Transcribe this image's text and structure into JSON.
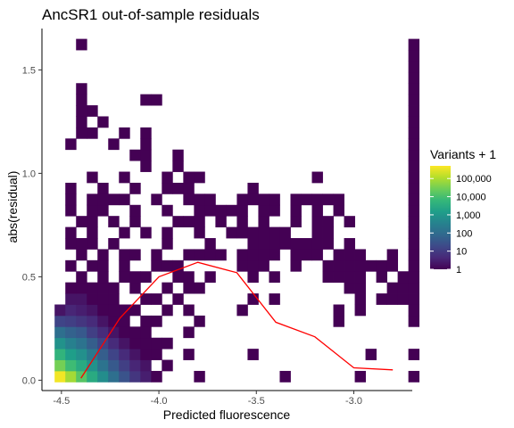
{
  "chart_data": {
    "type": "heatmap",
    "title": "AncSR1 out-of-sample residuals",
    "xlabel": "Predicted fluorescence",
    "ylabel": "abs(residual)",
    "xlim": [
      -4.6,
      -2.7
    ],
    "ylim": [
      -0.05,
      1.7
    ],
    "x_ticks": [
      {
        "value": -4.5,
        "label": "-4.5"
      },
      {
        "value": -4.0,
        "label": "-4.0"
      },
      {
        "value": -3.5,
        "label": "-3.5"
      },
      {
        "value": -3.0,
        "label": "-3.0"
      }
    ],
    "y_ticks": [
      {
        "value": 0.0,
        "label": "0.0"
      },
      {
        "value": 0.5,
        "label": "0.5"
      },
      {
        "value": 1.0,
        "label": "1.0"
      },
      {
        "value": 1.5,
        "label": "1.5"
      }
    ],
    "grid": false,
    "bin_width": {
      "x": 0.055,
      "y": 0.0535
    },
    "x_bin_start": -4.535,
    "y_bin_start": -0.0085,
    "cells": [
      [
        0,
        0,
        400000
      ],
      [
        0,
        1,
        30000
      ],
      [
        0,
        2,
        5000
      ],
      [
        0,
        3,
        800
      ],
      [
        0,
        4,
        120
      ],
      [
        0,
        5,
        15
      ],
      [
        0,
        6,
        2
      ],
      [
        1,
        0,
        80000
      ],
      [
        1,
        1,
        8000
      ],
      [
        1,
        2,
        1500
      ],
      [
        1,
        3,
        300
      ],
      [
        1,
        4,
        60
      ],
      [
        1,
        5,
        12
      ],
      [
        1,
        6,
        4
      ],
      [
        1,
        7,
        2
      ],
      [
        1,
        8,
        1
      ],
      [
        1,
        10,
        1
      ],
      [
        1,
        12,
        1
      ],
      [
        1,
        13,
        1
      ],
      [
        1,
        15,
        1
      ],
      [
        1,
        16,
        1
      ],
      [
        1,
        17,
        1
      ],
      [
        1,
        21,
        1
      ],
      [
        2,
        0,
        15000
      ],
      [
        2,
        1,
        3000
      ],
      [
        2,
        2,
        700
      ],
      [
        2,
        3,
        150
      ],
      [
        2,
        4,
        40
      ],
      [
        2,
        5,
        8
      ],
      [
        2,
        6,
        3
      ],
      [
        2,
        7,
        2
      ],
      [
        2,
        8,
        1
      ],
      [
        2,
        9,
        1
      ],
      [
        2,
        11,
        1
      ],
      [
        2,
        12,
        1
      ],
      [
        2,
        14,
        1
      ],
      [
        2,
        22,
        1
      ],
      [
        2,
        23,
        1
      ],
      [
        2,
        24,
        1
      ],
      [
        2,
        25,
        1
      ],
      [
        2,
        26,
        1
      ],
      [
        2,
        30,
        1
      ],
      [
        3,
        0,
        3000
      ],
      [
        3,
        1,
        800
      ],
      [
        3,
        2,
        200
      ],
      [
        3,
        3,
        50
      ],
      [
        3,
        4,
        12
      ],
      [
        3,
        5,
        5
      ],
      [
        3,
        6,
        2
      ],
      [
        3,
        7,
        1
      ],
      [
        3,
        8,
        1
      ],
      [
        3,
        10,
        1
      ],
      [
        3,
        12,
        1
      ],
      [
        3,
        13,
        1
      ],
      [
        3,
        14,
        1
      ],
      [
        3,
        15,
        1
      ],
      [
        3,
        16,
        1
      ],
      [
        3,
        18,
        1
      ],
      [
        3,
        22,
        1
      ],
      [
        3,
        24,
        1
      ],
      [
        4,
        0,
        600
      ],
      [
        4,
        1,
        150
      ],
      [
        4,
        2,
        50
      ],
      [
        4,
        3,
        15
      ],
      [
        4,
        4,
        5
      ],
      [
        4,
        5,
        2
      ],
      [
        4,
        6,
        1
      ],
      [
        4,
        7,
        1
      ],
      [
        4,
        8,
        1
      ],
      [
        4,
        9,
        1
      ],
      [
        4,
        10,
        1
      ],
      [
        4,
        11,
        1
      ],
      [
        4,
        15,
        1
      ],
      [
        4,
        16,
        1
      ],
      [
        4,
        17,
        1
      ],
      [
        4,
        23,
        1
      ],
      [
        5,
        0,
        120
      ],
      [
        5,
        1,
        40
      ],
      [
        5,
        2,
        15
      ],
      [
        5,
        3,
        5
      ],
      [
        5,
        4,
        2
      ],
      [
        5,
        5,
        1
      ],
      [
        5,
        6,
        1
      ],
      [
        5,
        7,
        1
      ],
      [
        5,
        8,
        1
      ],
      [
        5,
        12,
        1
      ],
      [
        5,
        14,
        1
      ],
      [
        5,
        16,
        1
      ],
      [
        5,
        21,
        1
      ],
      [
        6,
        0,
        30
      ],
      [
        6,
        1,
        12
      ],
      [
        6,
        2,
        5
      ],
      [
        6,
        3,
        2
      ],
      [
        6,
        4,
        1
      ],
      [
        6,
        5,
        1
      ],
      [
        6,
        6,
        1
      ],
      [
        6,
        9,
        1
      ],
      [
        6,
        10,
        1
      ],
      [
        6,
        11,
        1
      ],
      [
        6,
        13,
        1
      ],
      [
        6,
        16,
        1
      ],
      [
        6,
        18,
        1
      ],
      [
        6,
        22,
        1
      ],
      [
        7,
        0,
        8
      ],
      [
        7,
        1,
        4
      ],
      [
        7,
        2,
        2
      ],
      [
        7,
        3,
        1
      ],
      [
        7,
        4,
        1
      ],
      [
        7,
        6,
        1
      ],
      [
        7,
        8,
        1
      ],
      [
        7,
        9,
        1
      ],
      [
        7,
        11,
        1
      ],
      [
        7,
        14,
        1
      ],
      [
        7,
        15,
        1
      ],
      [
        7,
        17,
        1
      ],
      [
        7,
        20,
        1
      ],
      [
        8,
        0,
        3
      ],
      [
        8,
        1,
        2
      ],
      [
        8,
        2,
        1
      ],
      [
        8,
        3,
        1
      ],
      [
        8,
        4,
        1
      ],
      [
        8,
        5,
        1
      ],
      [
        8,
        7,
        1
      ],
      [
        8,
        9,
        1
      ],
      [
        8,
        13,
        1
      ],
      [
        8,
        19,
        1
      ],
      [
        8,
        20,
        1
      ],
      [
        8,
        21,
        1
      ],
      [
        8,
        22,
        1
      ],
      [
        8,
        25,
        1
      ],
      [
        9,
        0,
        1
      ],
      [
        9,
        2,
        1
      ],
      [
        9,
        3,
        1
      ],
      [
        9,
        5,
        1
      ],
      [
        9,
        7,
        1
      ],
      [
        9,
        10,
        1
      ],
      [
        9,
        11,
        1
      ],
      [
        9,
        16,
        1
      ],
      [
        9,
        25,
        1
      ],
      [
        10,
        1,
        1
      ],
      [
        10,
        3,
        1
      ],
      [
        10,
        6,
        1
      ],
      [
        10,
        8,
        1
      ],
      [
        10,
        10,
        1
      ],
      [
        10,
        12,
        1
      ],
      [
        10,
        13,
        1
      ],
      [
        10,
        15,
        1
      ],
      [
        10,
        17,
        1
      ],
      [
        10,
        18,
        1
      ],
      [
        11,
        7,
        1
      ],
      [
        11,
        9,
        1
      ],
      [
        11,
        10,
        1
      ],
      [
        11,
        14,
        1
      ],
      [
        11,
        17,
        1
      ],
      [
        11,
        19,
        1
      ],
      [
        11,
        20,
        1
      ],
      [
        12,
        2,
        1
      ],
      [
        12,
        4,
        1
      ],
      [
        12,
        6,
        1
      ],
      [
        12,
        8,
        1
      ],
      [
        12,
        9,
        1
      ],
      [
        12,
        11,
        1
      ],
      [
        12,
        14,
        1
      ],
      [
        12,
        16,
        1
      ],
      [
        12,
        17,
        1
      ],
      [
        12,
        18,
        1
      ],
      [
        13,
        0,
        1
      ],
      [
        13,
        5,
        1
      ],
      [
        13,
        8,
        1
      ],
      [
        13,
        11,
        1
      ],
      [
        13,
        13,
        1
      ],
      [
        13,
        14,
        1
      ],
      [
        13,
        15,
        1
      ],
      [
        13,
        16,
        1
      ],
      [
        13,
        18,
        1
      ],
      [
        14,
        9,
        1
      ],
      [
        14,
        11,
        1
      ],
      [
        14,
        12,
        1
      ],
      [
        14,
        15,
        1
      ],
      [
        14,
        16,
        1
      ],
      [
        15,
        11,
        1
      ],
      [
        15,
        14,
        1
      ],
      [
        15,
        15,
        1
      ],
      [
        16,
        13,
        1
      ],
      [
        16,
        15,
        1
      ],
      [
        17,
        6,
        1
      ],
      [
        17,
        10,
        1
      ],
      [
        17,
        11,
        1
      ],
      [
        17,
        13,
        1
      ],
      [
        17,
        14,
        1
      ],
      [
        17,
        15,
        1
      ],
      [
        17,
        16,
        1
      ],
      [
        18,
        2,
        1
      ],
      [
        18,
        7,
        1
      ],
      [
        18,
        9,
        1
      ],
      [
        18,
        10,
        1
      ],
      [
        18,
        11,
        1
      ],
      [
        18,
        12,
        1
      ],
      [
        18,
        13,
        1
      ],
      [
        18,
        16,
        1
      ],
      [
        18,
        17,
        1
      ],
      [
        19,
        10,
        1
      ],
      [
        19,
        11,
        1
      ],
      [
        19,
        12,
        1
      ],
      [
        19,
        13,
        1
      ],
      [
        19,
        14,
        1
      ],
      [
        19,
        15,
        1
      ],
      [
        19,
        16,
        1
      ],
      [
        20,
        7,
        1
      ],
      [
        20,
        9,
        1
      ],
      [
        20,
        11,
        1
      ],
      [
        20,
        12,
        1
      ],
      [
        20,
        13,
        1
      ],
      [
        20,
        15,
        1
      ],
      [
        20,
        16,
        1
      ],
      [
        21,
        0,
        1
      ],
      [
        21,
        12,
        1
      ],
      [
        21,
        13,
        1
      ],
      [
        22,
        10,
        1
      ],
      [
        22,
        11,
        1
      ],
      [
        22,
        12,
        1
      ],
      [
        22,
        14,
        1
      ],
      [
        22,
        15,
        1
      ],
      [
        22,
        16,
        1
      ],
      [
        23,
        11,
        1
      ],
      [
        23,
        12,
        1
      ],
      [
        23,
        16,
        1
      ],
      [
        24,
        11,
        1
      ],
      [
        24,
        12,
        1
      ],
      [
        24,
        13,
        1
      ],
      [
        24,
        14,
        1
      ],
      [
        24,
        15,
        1
      ],
      [
        24,
        16,
        1
      ],
      [
        24,
        18,
        1
      ],
      [
        25,
        9,
        1
      ],
      [
        25,
        10,
        1
      ],
      [
        25,
        12,
        1
      ],
      [
        25,
        13,
        1
      ],
      [
        25,
        14,
        1
      ],
      [
        25,
        16,
        1
      ],
      [
        26,
        5,
        1
      ],
      [
        26,
        6,
        1
      ],
      [
        26,
        9,
        1
      ],
      [
        26,
        10,
        1
      ],
      [
        26,
        11,
        1
      ],
      [
        26,
        15,
        1
      ],
      [
        26,
        16,
        1
      ],
      [
        27,
        8,
        1
      ],
      [
        27,
        9,
        1
      ],
      [
        27,
        10,
        1
      ],
      [
        27,
        11,
        1
      ],
      [
        27,
        12,
        1
      ],
      [
        27,
        14,
        1
      ],
      [
        28,
        0,
        1
      ],
      [
        28,
        6,
        1
      ],
      [
        28,
        7,
        1
      ],
      [
        28,
        8,
        1
      ],
      [
        28,
        9,
        1
      ],
      [
        28,
        10,
        1
      ],
      [
        28,
        11,
        1
      ],
      [
        29,
        2,
        1
      ],
      [
        29,
        10,
        1
      ],
      [
        30,
        7,
        1
      ],
      [
        30,
        9,
        1
      ],
      [
        30,
        10,
        1
      ],
      [
        31,
        7,
        1
      ],
      [
        31,
        8,
        1
      ],
      [
        31,
        10,
        1
      ],
      [
        31,
        11,
        1
      ],
      [
        32,
        7,
        1
      ],
      [
        32,
        8,
        1
      ],
      [
        32,
        9,
        1
      ],
      [
        33,
        0,
        1
      ],
      [
        33,
        2,
        1
      ],
      [
        33,
        5,
        1
      ],
      [
        33,
        6,
        1
      ],
      [
        33,
        7,
        1
      ],
      [
        33,
        8,
        1
      ],
      [
        33,
        9,
        1
      ],
      [
        33,
        10,
        1
      ],
      [
        33,
        11,
        1
      ],
      [
        33,
        12,
        1
      ],
      [
        33,
        13,
        1
      ],
      [
        33,
        14,
        1
      ],
      [
        33,
        15,
        1
      ],
      [
        33,
        16,
        1
      ],
      [
        33,
        17,
        1
      ],
      [
        33,
        18,
        1
      ],
      [
        33,
        19,
        1
      ],
      [
        33,
        20,
        1
      ],
      [
        33,
        21,
        1
      ],
      [
        33,
        22,
        1
      ],
      [
        33,
        23,
        1
      ],
      [
        33,
        24,
        1
      ],
      [
        33,
        25,
        1
      ],
      [
        33,
        26,
        1
      ],
      [
        33,
        27,
        1
      ],
      [
        33,
        28,
        1
      ],
      [
        33,
        29,
        1
      ],
      [
        33,
        30,
        1
      ]
    ],
    "trend_line": {
      "color": "#ff0000",
      "points": [
        [
          -4.4,
          0.01
        ],
        [
          -4.2,
          0.3
        ],
        [
          -4.0,
          0.5
        ],
        [
          -3.8,
          0.57
        ],
        [
          -3.6,
          0.52
        ],
        [
          -3.4,
          0.28
        ],
        [
          -3.2,
          0.21
        ],
        [
          -3.0,
          0.06
        ],
        [
          -2.8,
          0.05
        ]
      ]
    },
    "legend": {
      "title": "Variants + 1",
      "placement": "right",
      "scale": "log10",
      "range": [
        1,
        500000
      ],
      "colormap": "viridis",
      "colors": [
        "#440154",
        "#482878",
        "#3e4989",
        "#31688e",
        "#26828e",
        "#1f9e89",
        "#35b779",
        "#6ece58",
        "#b5de2b",
        "#fde725"
      ],
      "breaks": [
        {
          "value": 1,
          "label": "1"
        },
        {
          "value": 10,
          "label": "10"
        },
        {
          "value": 100,
          "label": "100"
        },
        {
          "value": 1000,
          "label": "1,000"
        },
        {
          "value": 10000,
          "label": "10,000"
        },
        {
          "value": 100000,
          "label": "100,000"
        }
      ]
    }
  }
}
